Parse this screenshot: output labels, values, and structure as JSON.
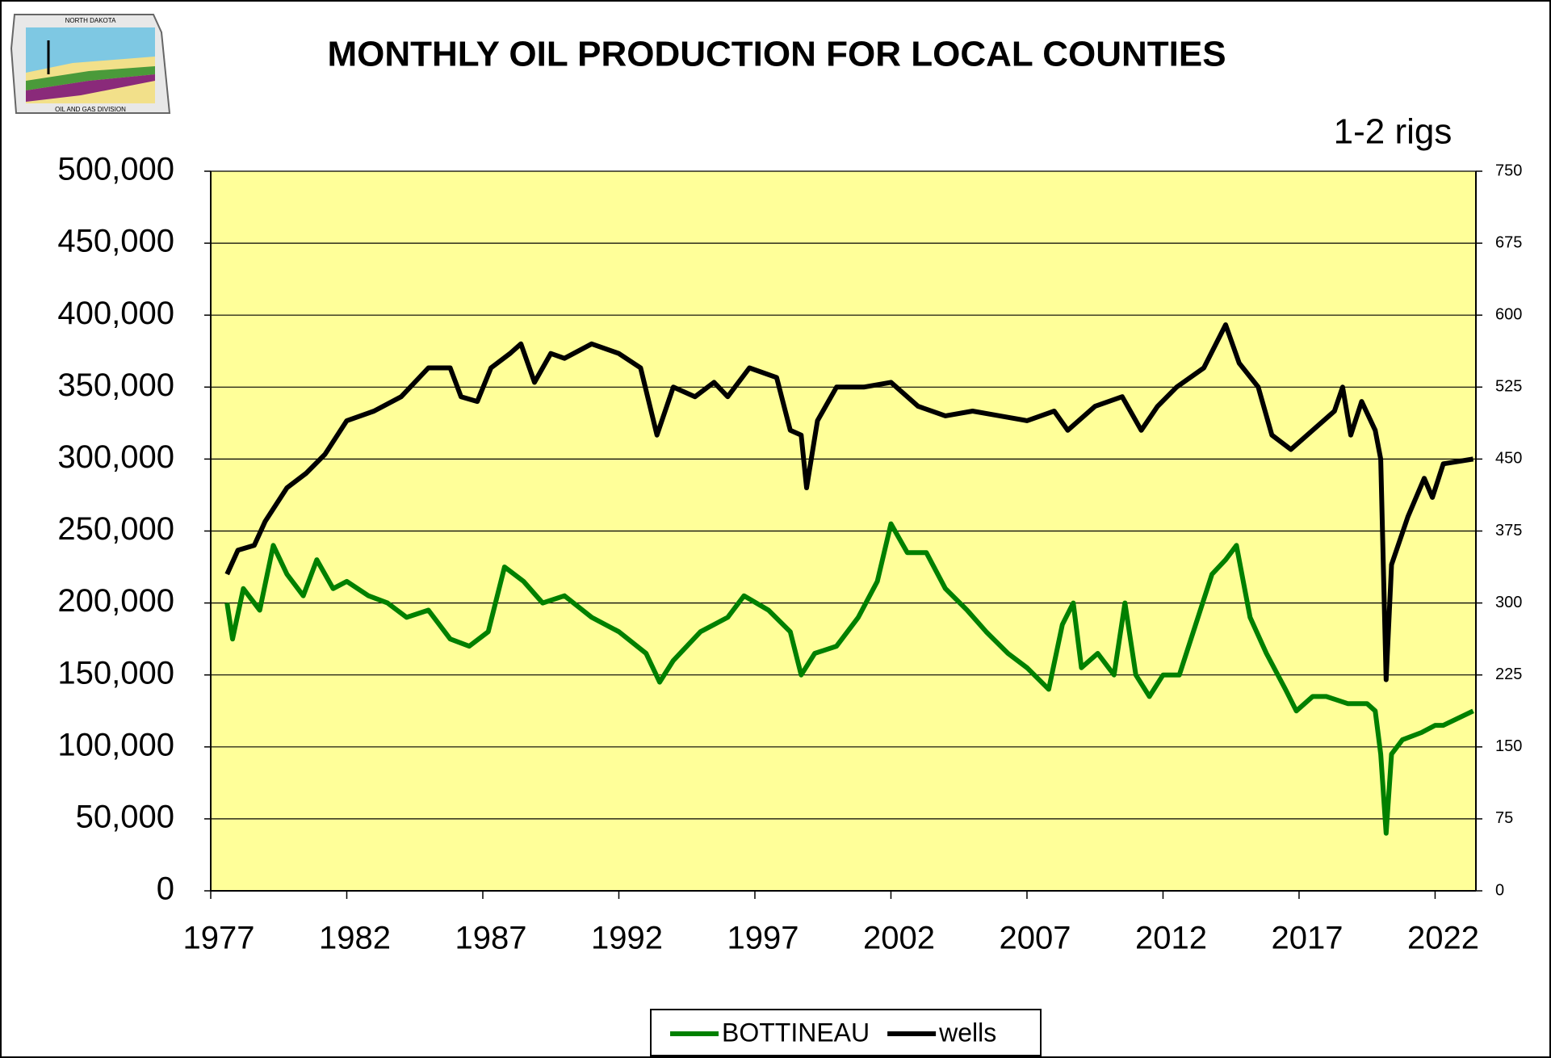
{
  "chart_data": {
    "type": "line",
    "title": "MONTHLY OIL PRODUCTION  FOR LOCAL COUNTIES",
    "annotation": "1-2 rigs",
    "logo": {
      "top": "NORTH DAKOTA",
      "bottom": "OIL AND GAS DIVISION"
    },
    "xlim": [
      1977,
      2023.5
    ],
    "xticks": [
      1977,
      1982,
      1987,
      1992,
      1997,
      2002,
      2007,
      2012,
      2017,
      2022
    ],
    "ylim": [
      0,
      500000
    ],
    "yticks": [
      {
        "value": 0,
        "label": "0"
      },
      {
        "value": 50000,
        "label": "50,000"
      },
      {
        "value": 100000,
        "label": "100,000"
      },
      {
        "value": 150000,
        "label": "150,000"
      },
      {
        "value": 200000,
        "label": "200,000"
      },
      {
        "value": 250000,
        "label": "250,000"
      },
      {
        "value": 300000,
        "label": "300,000"
      },
      {
        "value": 350000,
        "label": "350,000"
      },
      {
        "value": 400000,
        "label": "400,000"
      },
      {
        "value": 450000,
        "label": "450,000"
      },
      {
        "value": 500000,
        "label": "500,000"
      }
    ],
    "y2lim": [
      0,
      750
    ],
    "y2ticks": [
      0,
      75,
      150,
      225,
      300,
      375,
      450,
      525,
      600,
      675,
      750
    ],
    "grid": true,
    "legend": "bottom",
    "series": [
      {
        "name": "BOTTINEAU",
        "color": "#008000",
        "axis": "y",
        "x": [
          1977.6,
          1977.8,
          1978.2,
          1978.8,
          1979.3,
          1979.8,
          1980.4,
          1980.9,
          1981.5,
          1982.0,
          1982.8,
          1983.5,
          1984.2,
          1985.0,
          1985.8,
          1986.5,
          1987.2,
          1987.8,
          1988.5,
          1989.2,
          1990.0,
          1991.0,
          1992.0,
          1993.0,
          1993.5,
          1994.0,
          1995.0,
          1996.0,
          1996.6,
          1997.5,
          1998.3,
          1998.7,
          1999.2,
          2000.0,
          2000.8,
          2001.5,
          2002.0,
          2002.6,
          2003.3,
          2004.0,
          2004.8,
          2005.5,
          2006.3,
          2007.0,
          2007.8,
          2008.3,
          2008.7,
          2009.0,
          2009.6,
          2010.2,
          2010.6,
          2011.0,
          2011.5,
          2012.0,
          2012.6,
          2013.2,
          2013.8,
          2014.3,
          2014.7,
          2015.2,
          2015.8,
          2016.5,
          2016.9,
          2017.5,
          2018.0,
          2018.8,
          2019.5,
          2019.8,
          2020.0,
          2020.2,
          2020.4,
          2020.8,
          2021.5,
          2022.0,
          2022.3,
          2023.4
        ],
        "values": [
          200000,
          175000,
          210000,
          195000,
          240000,
          220000,
          205000,
          230000,
          210000,
          215000,
          205000,
          200000,
          190000,
          195000,
          175000,
          170000,
          180000,
          225000,
          215000,
          200000,
          205000,
          190000,
          180000,
          165000,
          145000,
          160000,
          180000,
          190000,
          205000,
          195000,
          180000,
          150000,
          165000,
          170000,
          190000,
          215000,
          255000,
          235000,
          235000,
          210000,
          195000,
          180000,
          165000,
          155000,
          140000,
          185000,
          200000,
          155000,
          165000,
          150000,
          200000,
          150000,
          135000,
          150000,
          150000,
          185000,
          220000,
          230000,
          240000,
          190000,
          165000,
          140000,
          125000,
          135000,
          135000,
          130000,
          130000,
          125000,
          95000,
          40000,
          95000,
          105000,
          110000,
          115000,
          115000,
          125000
        ]
      },
      {
        "name": "wells",
        "color": "#000000",
        "axis": "y2",
        "x": [
          1977.6,
          1978.0,
          1978.6,
          1979.0,
          1979.8,
          1980.5,
          1981.2,
          1982.0,
          1983.0,
          1984.0,
          1985.0,
          1985.8,
          1986.2,
          1986.8,
          1987.3,
          1988.0,
          1988.4,
          1988.9,
          1989.5,
          1990.0,
          1991.0,
          1992.0,
          1992.8,
          1993.4,
          1994.0,
          1994.8,
          1995.5,
          1996.0,
          1996.8,
          1997.8,
          1998.3,
          1998.7,
          1998.9,
          1999.3,
          2000.0,
          2001.0,
          2002.0,
          2003.0,
          2004.0,
          2005.0,
          2006.0,
          2007.0,
          2008.0,
          2008.5,
          2009.5,
          2010.5,
          2011.2,
          2011.8,
          2012.5,
          2013.5,
          2014.3,
          2014.8,
          2015.5,
          2016.0,
          2016.7,
          2017.5,
          2018.3,
          2018.6,
          2018.9,
          2019.3,
          2019.8,
          2020.0,
          2020.2,
          2020.4,
          2021.0,
          2021.6,
          2021.9,
          2022.3,
          2023.4
        ],
        "values": [
          330,
          355,
          360,
          385,
          420,
          435,
          455,
          490,
          500,
          515,
          545,
          545,
          515,
          510,
          545,
          560,
          570,
          530,
          560,
          555,
          570,
          560,
          545,
          475,
          525,
          515,
          530,
          515,
          545,
          535,
          480,
          475,
          420,
          490,
          525,
          525,
          530,
          505,
          495,
          500,
          495,
          490,
          500,
          480,
          505,
          515,
          480,
          505,
          525,
          545,
          590,
          550,
          525,
          475,
          460,
          480,
          500,
          525,
          475,
          510,
          480,
          450,
          220,
          340,
          390,
          430,
          410,
          445,
          450
        ]
      }
    ]
  }
}
